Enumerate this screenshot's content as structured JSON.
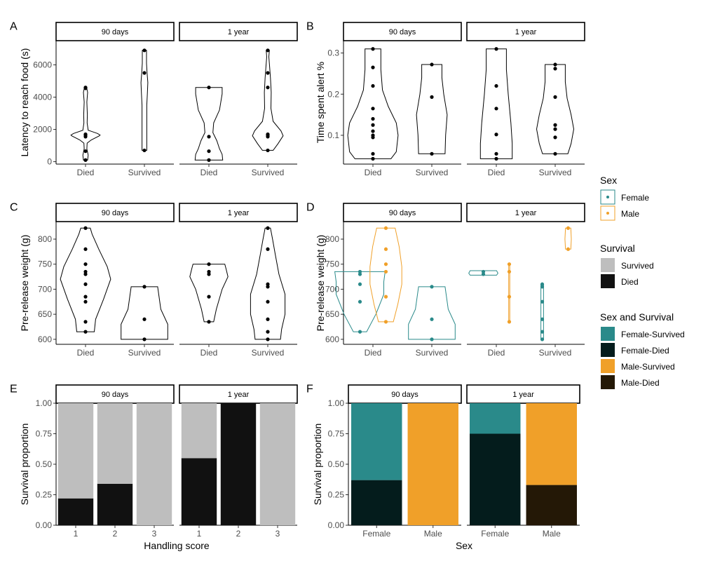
{
  "chart_data": [
    {
      "panel": "A",
      "type": "violin",
      "facets": [
        "90 days",
        "1 year"
      ],
      "categories": [
        "Died",
        "Survived"
      ],
      "ylabel": "Latency to reach food (s)",
      "xlabel": "",
      "ylim": [
        -150,
        7500
      ],
      "yticks": [
        0,
        2000,
        4000,
        6000
      ],
      "groups": [
        {
          "facet": "90 days",
          "category": "Died",
          "color": "#000000",
          "points": [
            100,
            650,
            1550,
            1650,
            1700,
            4550,
            4600
          ],
          "profile": [
            [
              100,
              0.08
            ],
            [
              400,
              0.1
            ],
            [
              800,
              0.05
            ],
            [
              1150,
              0.06
            ],
            [
              1350,
              0.22
            ],
            [
              1600,
              0.52
            ],
            [
              1650,
              0.55
            ],
            [
              1750,
              0.45
            ],
            [
              1950,
              0.1
            ],
            [
              2400,
              0.06
            ],
            [
              2900,
              0.07
            ],
            [
              3700,
              0.05
            ],
            [
              4300,
              0.08
            ],
            [
              4600,
              0.04
            ]
          ]
        },
        {
          "facet": "90 days",
          "category": "Survived",
          "color": "#000000",
          "points": [
            700,
            5500,
            6900
          ],
          "profile": [
            [
              700,
              0.09
            ],
            [
              1500,
              0.09
            ],
            [
              3500,
              0.09
            ],
            [
              4200,
              0.11
            ],
            [
              4900,
              0.13
            ],
            [
              5500,
              0.1
            ],
            [
              6100,
              0.08
            ],
            [
              6900,
              0.08
            ]
          ]
        },
        {
          "facet": "1 year",
          "category": "Died",
          "color": "#000000",
          "points": [
            100,
            650,
            1550,
            4600
          ],
          "profile": [
            [
              100,
              0.52
            ],
            [
              450,
              0.5
            ],
            [
              800,
              0.4
            ],
            [
              1300,
              0.3
            ],
            [
              1800,
              0.15
            ],
            [
              2400,
              0.18
            ],
            [
              3200,
              0.4
            ],
            [
              4200,
              0.5
            ],
            [
              4600,
              0.5
            ]
          ]
        },
        {
          "facet": "1 year",
          "category": "Survived",
          "color": "#000000",
          "points": [
            700,
            1550,
            1650,
            1700,
            4600,
            5500,
            6900
          ],
          "profile": [
            [
              700,
              0.2
            ],
            [
              1100,
              0.38
            ],
            [
              1600,
              0.58
            ],
            [
              1900,
              0.5
            ],
            [
              2500,
              0.2
            ],
            [
              3300,
              0.12
            ],
            [
              4300,
              0.13
            ],
            [
              5200,
              0.1
            ],
            [
              5900,
              0.07
            ],
            [
              6500,
              0.04
            ],
            [
              6900,
              0.06
            ]
          ]
        }
      ]
    },
    {
      "panel": "B",
      "type": "violin",
      "facets": [
        "90 days",
        "1 year"
      ],
      "categories": [
        "Died",
        "Survived"
      ],
      "ylabel": "Time spent alert %",
      "xlabel": "",
      "ylim": [
        0.03,
        0.33
      ],
      "yticks": [
        0.1,
        0.2,
        0.3
      ],
      "groups": [
        {
          "facet": "90 days",
          "category": "Died",
          "color": "#000000",
          "points": [
            0.043,
            0.055,
            0.095,
            0.1,
            0.11,
            0.125,
            0.14,
            0.165,
            0.22,
            0.265,
            0.31
          ],
          "profile": [
            [
              0.043,
              0.68
            ],
            [
              0.06,
              0.88
            ],
            [
              0.1,
              0.95
            ],
            [
              0.13,
              0.88
            ],
            [
              0.17,
              0.58
            ],
            [
              0.21,
              0.36
            ],
            [
              0.26,
              0.3
            ],
            [
              0.31,
              0.3
            ]
          ]
        },
        {
          "facet": "90 days",
          "category": "Survived",
          "color": "#000000",
          "points": [
            0.055,
            0.193,
            0.272
          ],
          "profile": [
            [
              0.055,
              0.5
            ],
            [
              0.1,
              0.52
            ],
            [
              0.15,
              0.58
            ],
            [
              0.2,
              0.45
            ],
            [
              0.24,
              0.38
            ],
            [
              0.272,
              0.38
            ]
          ]
        },
        {
          "facet": "1 year",
          "category": "Died",
          "color": "#000000",
          "points": [
            0.043,
            0.055,
            0.102,
            0.165,
            0.22,
            0.31
          ],
          "profile": [
            [
              0.043,
              0.6
            ],
            [
              0.08,
              0.6
            ],
            [
              0.13,
              0.55
            ],
            [
              0.2,
              0.45
            ],
            [
              0.26,
              0.38
            ],
            [
              0.31,
              0.38
            ]
          ]
        },
        {
          "facet": "1 year",
          "category": "Survived",
          "color": "#000000",
          "points": [
            0.055,
            0.095,
            0.115,
            0.125,
            0.193,
            0.262,
            0.272
          ],
          "profile": [
            [
              0.055,
              0.48
            ],
            [
              0.08,
              0.6
            ],
            [
              0.115,
              0.7
            ],
            [
              0.15,
              0.6
            ],
            [
              0.19,
              0.45
            ],
            [
              0.23,
              0.38
            ],
            [
              0.272,
              0.38
            ]
          ]
        }
      ]
    },
    {
      "panel": "C",
      "type": "violin",
      "facets": [
        "90 days",
        "1 year"
      ],
      "categories": [
        "Died",
        "Survived"
      ],
      "ylabel": "Pre-release weight (g)",
      "xlabel": "",
      "ylim": [
        590,
        835
      ],
      "yticks": [
        600,
        650,
        700,
        750,
        800
      ],
      "groups": [
        {
          "facet": "90 days",
          "category": "Died",
          "color": "#000000",
          "points": [
            615,
            635,
            675,
            685,
            710,
            730,
            735,
            750,
            780,
            822
          ],
          "profile": [
            [
              615,
              0.33
            ],
            [
              640,
              0.38
            ],
            [
              680,
              0.68
            ],
            [
              720,
              0.95
            ],
            [
              745,
              0.82
            ],
            [
              780,
              0.5
            ],
            [
              810,
              0.25
            ],
            [
              822,
              0.18
            ]
          ]
        },
        {
          "facet": "90 days",
          "category": "Survived",
          "color": "#000000",
          "points": [
            600,
            640,
            705
          ],
          "profile": [
            [
              600,
              0.88
            ],
            [
              630,
              0.88
            ],
            [
              660,
              0.62
            ],
            [
              705,
              0.5
            ]
          ]
        },
        {
          "facet": "1 year",
          "category": "Died",
          "color": "#000000",
          "points": [
            635,
            685,
            730,
            735,
            750
          ],
          "profile": [
            [
              635,
              0.18
            ],
            [
              660,
              0.28
            ],
            [
              700,
              0.5
            ],
            [
              725,
              0.72
            ],
            [
              740,
              0.65
            ],
            [
              750,
              0.6
            ]
          ]
        },
        {
          "facet": "1 year",
          "category": "Survived",
          "color": "#000000",
          "points": [
            600,
            615,
            640,
            675,
            705,
            710,
            780,
            822
          ],
          "profile": [
            [
              600,
              0.48
            ],
            [
              620,
              0.52
            ],
            [
              650,
              0.65
            ],
            [
              690,
              0.65
            ],
            [
              730,
              0.42
            ],
            [
              770,
              0.28
            ],
            [
              800,
              0.18
            ],
            [
              822,
              0.1
            ]
          ]
        }
      ]
    },
    {
      "panel": "D",
      "type": "violin",
      "facets": [
        "90 days",
        "1 year"
      ],
      "categories": [
        "Died",
        "Survived"
      ],
      "ylabel": "Pre-release weight (g)",
      "xlabel": "",
      "ylim": [
        590,
        835
      ],
      "yticks": [
        600,
        650,
        700,
        750,
        800
      ],
      "groups": [
        {
          "facet": "90 days",
          "category": "Died",
          "sex": "Female",
          "offset": -0.22,
          "color": "#2a8a8a",
          "points": [
            615,
            675,
            710,
            730,
            735
          ],
          "profile": [
            [
              615,
              0.25
            ],
            [
              650,
              0.6
            ],
            [
              690,
              0.9
            ],
            [
              715,
              0.9
            ],
            [
              735,
              0.95
            ]
          ]
        },
        {
          "facet": "90 days",
          "category": "Died",
          "sex": "Male",
          "offset": 0.22,
          "color": "#f0a029",
          "points": [
            635,
            685,
            735,
            750,
            780,
            822
          ],
          "profile": [
            [
              635,
              0.28
            ],
            [
              670,
              0.45
            ],
            [
              710,
              0.6
            ],
            [
              745,
              0.6
            ],
            [
              785,
              0.5
            ],
            [
              822,
              0.35
            ]
          ]
        },
        {
          "facet": "90 days",
          "category": "Survived",
          "sex": "Female",
          "offset": 0,
          "color": "#2a8a8a",
          "points": [
            600,
            640,
            705
          ],
          "profile": [
            [
              600,
              0.88
            ],
            [
              630,
              0.88
            ],
            [
              660,
              0.62
            ],
            [
              705,
              0.5
            ]
          ]
        },
        {
          "facet": "1 year",
          "category": "Died",
          "sex": "Female",
          "offset": -0.22,
          "color": "#2a8a8a",
          "points": [
            730,
            735
          ],
          "profile": [
            [
              728,
              0.5
            ],
            [
              732,
              0.55
            ],
            [
              737,
              0.5
            ]
          ]
        },
        {
          "facet": "1 year",
          "category": "Died",
          "sex": "Male",
          "offset": 0.22,
          "color": "#f0a029",
          "points": [
            635,
            685,
            735,
            750
          ],
          "profile": [
            [
              635,
              0.02
            ],
            [
              750,
              0.02
            ]
          ]
        },
        {
          "facet": "1 year",
          "category": "Survived",
          "sex": "Female",
          "offset": -0.22,
          "color": "#2a8a8a",
          "points": [
            600,
            615,
            640,
            675,
            705,
            710
          ],
          "profile": [
            [
              600,
              0.05
            ],
            [
              710,
              0.05
            ]
          ]
        },
        {
          "facet": "1 year",
          "category": "Survived",
          "sex": "Male",
          "offset": 0.22,
          "color": "#f0a029",
          "points": [
            780,
            822
          ],
          "profile": [
            [
              780,
              0.1
            ],
            [
              800,
              0.12
            ],
            [
              822,
              0.1
            ]
          ]
        }
      ]
    },
    {
      "panel": "E",
      "type": "bar",
      "stacked": true,
      "facets": [
        "90 days",
        "1 year"
      ],
      "categories": [
        "1",
        "2",
        "3"
      ],
      "xlabel": "Handling score",
      "ylabel": "Survival proportion",
      "ylim": [
        0,
        1
      ],
      "yticks": [
        "0.00",
        "0.25",
        "0.50",
        "0.75",
        "1.00"
      ],
      "series": [
        {
          "name": "Died",
          "color": "#111111",
          "values_by_facet": {
            "90 days": [
              0.22,
              0.34,
              0.0
            ],
            "1 year": [
              0.55,
              1.0,
              0.0
            ]
          }
        },
        {
          "name": "Survived",
          "color": "#bebebe",
          "values_by_facet": {
            "90 days": [
              0.78,
              0.66,
              1.0
            ],
            "1 year": [
              0.45,
              0.0,
              1.0
            ]
          }
        }
      ]
    },
    {
      "panel": "F",
      "type": "bar",
      "stacked": true,
      "facets": [
        "90 days",
        "1 year"
      ],
      "categories": [
        "Female",
        "Male"
      ],
      "xlabel": "Sex",
      "ylabel": "Survival proportion",
      "ylim": [
        0,
        1
      ],
      "yticks": [
        "0.00",
        "0.25",
        "0.50",
        "0.75",
        "1.00"
      ],
      "series": [
        {
          "name": "Died",
          "sex_colors": {
            "Female": "#041c1c",
            "Male": "#241806"
          },
          "values_by_facet": {
            "90 days": [
              0.37,
              0.0
            ],
            "1 year": [
              0.75,
              0.33
            ]
          }
        },
        {
          "name": "Survived",
          "sex_colors": {
            "Female": "#2a8a8a",
            "Male": "#f0a029"
          },
          "values_by_facet": {
            "90 days": [
              0.63,
              1.0
            ],
            "1 year": [
              0.25,
              0.67
            ]
          }
        }
      ]
    }
  ],
  "legend": {
    "sex": {
      "title": "Sex",
      "items": [
        {
          "label": "Female",
          "color": "#2a8a8a"
        },
        {
          "label": "Male",
          "color": "#f0a029"
        }
      ]
    },
    "survival": {
      "title": "Survival",
      "items": [
        {
          "label": "Survived",
          "color": "#bebebe"
        },
        {
          "label": "Died",
          "color": "#111111"
        }
      ]
    },
    "sex_survival": {
      "title": "Sex and Survival",
      "items": [
        {
          "label": "Female-Survived",
          "color": "#2a8a8a"
        },
        {
          "label": "Female-Died",
          "color": "#041c1c"
        },
        {
          "label": "Male-Survived",
          "color": "#f0a029"
        },
        {
          "label": "Male-Died",
          "color": "#241806"
        }
      ]
    }
  }
}
